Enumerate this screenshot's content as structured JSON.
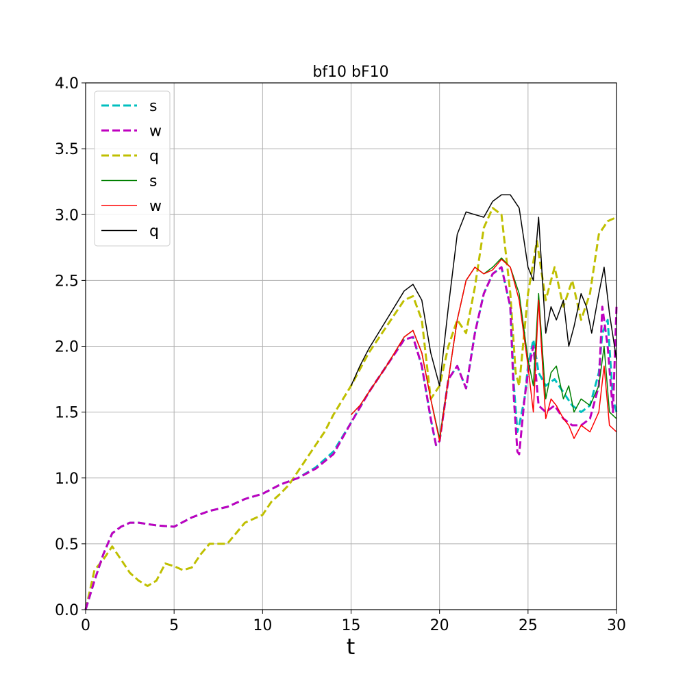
{
  "chart_data": {
    "type": "line",
    "title": "bf10  bF10",
    "xlabel": "t",
    "ylabel": "",
    "xlim": [
      0,
      30
    ],
    "ylim": [
      0,
      4.0
    ],
    "xticks": [
      "0",
      "5",
      "10",
      "15",
      "20",
      "25",
      "30"
    ],
    "yticks": [
      "0.0",
      "0.5",
      "1.0",
      "1.5",
      "2.0",
      "2.5",
      "3.0",
      "3.5",
      "4.0"
    ],
    "grid": true,
    "legend_position": "upper-left",
    "series": [
      {
        "name": "s",
        "color": "#00bfbf",
        "style": "dashed",
        "x": [
          0,
          0.5,
          1,
          1.5,
          2,
          2.5,
          3,
          4,
          5,
          6,
          7,
          8,
          9,
          10,
          11,
          12,
          13,
          14,
          15,
          16,
          17,
          18,
          18.5,
          19,
          19.5,
          19.8,
          20,
          20.5,
          21,
          21.5,
          22,
          22.5,
          23,
          23.5,
          24,
          24.2,
          24.4,
          24.5,
          24.8,
          25,
          25.3,
          25.6,
          26,
          26.5,
          27,
          27.5,
          28,
          28.5,
          29,
          29.2,
          29.5,
          29.8,
          30
        ],
        "y": [
          0.0,
          0.22,
          0.42,
          0.58,
          0.63,
          0.66,
          0.66,
          0.64,
          0.63,
          0.7,
          0.75,
          0.78,
          0.84,
          0.88,
          0.95,
          1.0,
          1.08,
          1.2,
          1.42,
          1.65,
          1.85,
          2.05,
          2.07,
          1.85,
          1.45,
          1.25,
          1.28,
          1.75,
          1.85,
          1.68,
          2.1,
          2.4,
          2.55,
          2.6,
          2.3,
          1.7,
          1.35,
          1.4,
          1.6,
          1.85,
          2.05,
          1.8,
          1.7,
          1.75,
          1.65,
          1.55,
          1.5,
          1.55,
          1.8,
          2.1,
          2.2,
          1.6,
          1.5
        ]
      },
      {
        "name": "w",
        "color": "#bf00bf",
        "style": "dashed",
        "x": [
          0,
          0.5,
          1,
          1.5,
          2,
          2.5,
          3,
          4,
          5,
          6,
          7,
          8,
          9,
          10,
          11,
          12,
          13,
          14,
          15,
          16,
          17,
          18,
          18.5,
          19,
          19.5,
          19.8,
          20,
          20.5,
          21,
          21.5,
          22,
          22.5,
          23,
          23.5,
          24,
          24.2,
          24.4,
          24.5,
          24.8,
          25,
          25.3,
          25.6,
          26,
          26.5,
          27,
          27.5,
          28,
          28.5,
          29,
          29.2,
          29.5,
          29.8,
          30
        ],
        "y": [
          0.0,
          0.22,
          0.42,
          0.58,
          0.63,
          0.66,
          0.66,
          0.64,
          0.63,
          0.7,
          0.75,
          0.78,
          0.84,
          0.88,
          0.95,
          1.0,
          1.07,
          1.18,
          1.42,
          1.65,
          1.85,
          2.05,
          2.07,
          1.85,
          1.45,
          1.25,
          1.28,
          1.75,
          1.85,
          1.68,
          2.1,
          2.4,
          2.55,
          2.6,
          2.3,
          1.6,
          1.2,
          1.18,
          1.6,
          1.8,
          2.0,
          1.55,
          1.5,
          1.55,
          1.45,
          1.4,
          1.4,
          1.45,
          1.7,
          2.3,
          2.0,
          1.5,
          2.3
        ]
      },
      {
        "name": "q",
        "color": "#bfbf00",
        "style": "dashed",
        "x": [
          0,
          0.5,
          1,
          1.5,
          2,
          2.5,
          3,
          3.5,
          4,
          4.5,
          5,
          5.5,
          6,
          6.5,
          7,
          7.5,
          8,
          8.5,
          9,
          10,
          10.5,
          11,
          11.5,
          12,
          12.5,
          13,
          13.5,
          14,
          15,
          16,
          17,
          18,
          18.5,
          19,
          19.5,
          20,
          20.5,
          21,
          21.5,
          22,
          22.5,
          23,
          23.5,
          24,
          24.3,
          24.5,
          25,
          25.5,
          26,
          26.5,
          27,
          27.5,
          28,
          28.5,
          29,
          29.5,
          30
        ],
        "y": [
          0.0,
          0.3,
          0.38,
          0.48,
          0.38,
          0.28,
          0.22,
          0.18,
          0.22,
          0.35,
          0.33,
          0.3,
          0.32,
          0.42,
          0.5,
          0.5,
          0.5,
          0.58,
          0.66,
          0.72,
          0.82,
          0.88,
          0.95,
          1.05,
          1.15,
          1.25,
          1.35,
          1.48,
          1.7,
          1.95,
          2.15,
          2.35,
          2.38,
          2.2,
          1.6,
          1.7,
          2.0,
          2.2,
          2.1,
          2.45,
          2.9,
          3.05,
          3.0,
          2.4,
          1.8,
          1.7,
          2.4,
          2.8,
          2.35,
          2.6,
          2.3,
          2.5,
          2.2,
          2.4,
          2.85,
          2.95,
          2.98
        ]
      },
      {
        "name": "s",
        "color": "#008000",
        "style": "solid",
        "x": [
          15,
          15.5,
          16,
          17,
          18,
          18.5,
          19,
          19.5,
          20,
          20.5,
          21,
          21.5,
          22,
          22.5,
          23,
          23.5,
          24,
          24.5,
          25,
          25.3,
          25.6,
          26,
          26.3,
          26.6,
          27,
          27.3,
          27.6,
          28,
          28.5,
          29,
          29.3,
          29.6,
          30
        ],
        "y": [
          1.48,
          1.55,
          1.65,
          1.85,
          2.07,
          2.12,
          1.95,
          1.6,
          1.3,
          1.75,
          2.2,
          2.5,
          2.6,
          2.55,
          2.6,
          2.67,
          2.6,
          2.4,
          1.9,
          1.7,
          2.4,
          1.6,
          1.8,
          1.85,
          1.6,
          1.7,
          1.5,
          1.6,
          1.55,
          1.7,
          2.0,
          1.5,
          1.45
        ]
      },
      {
        "name": "w",
        "color": "#ff0000",
        "style": "solid",
        "x": [
          15,
          15.5,
          16,
          17,
          18,
          18.5,
          19,
          19.5,
          20,
          20.5,
          21,
          21.5,
          22,
          22.5,
          23,
          23.5,
          24,
          24.5,
          25,
          25.3,
          25.6,
          26,
          26.3,
          26.6,
          27,
          27.3,
          27.6,
          28,
          28.5,
          29,
          29.3,
          29.6,
          30
        ],
        "y": [
          1.48,
          1.55,
          1.65,
          1.85,
          2.07,
          2.12,
          1.95,
          1.6,
          1.28,
          1.75,
          2.2,
          2.5,
          2.6,
          2.55,
          2.58,
          2.66,
          2.6,
          2.35,
          1.85,
          1.5,
          2.35,
          1.45,
          1.6,
          1.55,
          1.45,
          1.4,
          1.3,
          1.4,
          1.35,
          1.5,
          1.85,
          1.4,
          1.35
        ]
      },
      {
        "name": "q",
        "color": "#000000",
        "style": "solid",
        "x": [
          15,
          15.5,
          16,
          17,
          18,
          18.5,
          19,
          19.5,
          20,
          20.5,
          21,
          21.5,
          22,
          22.5,
          23,
          23.5,
          24,
          24.5,
          25,
          25.3,
          25.6,
          26,
          26.3,
          26.6,
          27,
          27.3,
          27.6,
          28,
          28.3,
          28.6,
          29,
          29.3,
          29.6,
          30
        ],
        "y": [
          1.7,
          1.85,
          1.98,
          2.2,
          2.42,
          2.47,
          2.35,
          1.95,
          1.7,
          2.3,
          2.85,
          3.02,
          3.0,
          2.98,
          3.1,
          3.15,
          3.15,
          3.05,
          2.6,
          2.5,
          2.98,
          2.1,
          2.3,
          2.2,
          2.35,
          2.0,
          2.15,
          2.4,
          2.3,
          2.1,
          2.4,
          2.6,
          2.25,
          1.9
        ]
      }
    ]
  }
}
